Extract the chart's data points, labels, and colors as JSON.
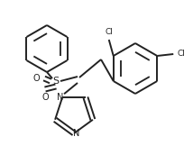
{
  "bg_color": "#ffffff",
  "line_color": "#222222",
  "line_width": 1.4,
  "text_color": "#222222",
  "font_size": 7.0,
  "cl_font_size": 6.5,
  "s_font_size": 8.0,
  "figsize": [
    2.14,
    1.72
  ],
  "dpi": 100,
  "xlim": [
    0,
    214
  ],
  "ylim": [
    0,
    172
  ]
}
